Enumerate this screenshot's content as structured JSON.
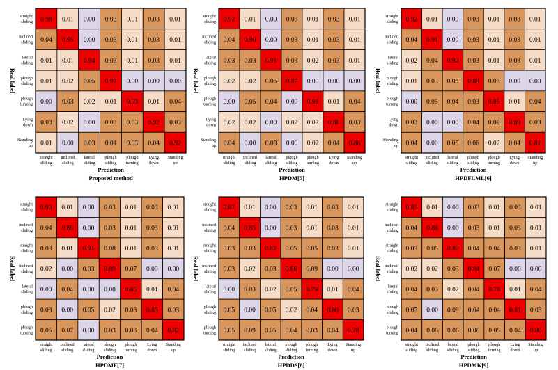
{
  "figure": {
    "description_title": ""
  },
  "colors": {
    "strong": "#ee0000",
    "medium": "#d8955c",
    "light": "#f6dcc6",
    "low": "#dcd6e8"
  },
  "chart_data": [
    {
      "type": "heatmap",
      "title": "Proposed method",
      "xlabel": "Prediction",
      "ylabel": "Real label",
      "rows": [
        [
          "straight",
          "sliding"
        ],
        [
          "inclined",
          "sliding"
        ],
        [
          "lateral",
          "sliding"
        ],
        [
          "plough",
          "sliding"
        ],
        [
          "plough",
          "turning"
        ],
        [
          "Lying",
          "down"
        ],
        [
          "Standing",
          "up"
        ]
      ],
      "cols": [
        [
          "straight",
          "sliding"
        ],
        [
          "inclined",
          "sliding"
        ],
        [
          "lateral",
          "sliding"
        ],
        [
          "plough",
          "sliding"
        ],
        [
          "plough",
          "turning"
        ],
        [
          "Lying",
          "down"
        ],
        [
          "Standing",
          "up"
        ]
      ],
      "values": [
        [
          0.98,
          0.01,
          0.0,
          0.03,
          0.01,
          0.03,
          0.01
        ],
        [
          0.04,
          0.95,
          0.0,
          0.03,
          0.01,
          0.03,
          0.01
        ],
        [
          0.01,
          0.01,
          0.94,
          0.03,
          0.01,
          0.03,
          0.01
        ],
        [
          0.01,
          0.02,
          0.05,
          0.93,
          0.0,
          0.0,
          0.0
        ],
        [
          0.0,
          0.03,
          0.02,
          0.01,
          0.93,
          0.01,
          0.04
        ],
        [
          0.03,
          0.02,
          0.0,
          0.03,
          0.03,
          0.92,
          0.03
        ],
        [
          0.01,
          0.0,
          0.03,
          0.04,
          0.03,
          0.04,
          0.92
        ]
      ]
    },
    {
      "type": "heatmap",
      "title": "HPDM[5]",
      "xlabel": "Prediction",
      "ylabel": "Real label",
      "rows": [
        [
          "straight",
          "sliding"
        ],
        [
          "inclined",
          "sliding"
        ],
        [
          "lateral",
          "sliding"
        ],
        [
          "plough",
          "sliding"
        ],
        [
          "plough",
          "turning"
        ],
        [
          "Lying",
          "down"
        ],
        [
          "Standing",
          "up"
        ]
      ],
      "cols": [
        [
          "straight",
          "sliding"
        ],
        [
          "inclined",
          "sliding"
        ],
        [
          "lateral",
          "sliding"
        ],
        [
          "plough",
          "sliding"
        ],
        [
          "plough",
          "turning"
        ],
        [
          "Lying",
          "down"
        ],
        [
          "Standing",
          "up"
        ]
      ],
      "values": [
        [
          0.92,
          0.01,
          0.0,
          0.03,
          0.01,
          0.03,
          0.01
        ],
        [
          0.04,
          0.9,
          0.0,
          0.03,
          0.01,
          0.03,
          0.01
        ],
        [
          0.03,
          0.03,
          0.91,
          0.03,
          0.02,
          0.03,
          0.01
        ],
        [
          0.02,
          0.02,
          0.05,
          0.87,
          0.0,
          0.0,
          0.0
        ],
        [
          0.0,
          0.05,
          0.04,
          0.0,
          0.91,
          0.01,
          0.04
        ],
        [
          0.02,
          0.02,
          0.0,
          0.02,
          0.02,
          0.88,
          0.03
        ],
        [
          0.04,
          0.0,
          0.08,
          0.0,
          0.02,
          0.04,
          0.88
        ]
      ]
    },
    {
      "type": "heatmap",
      "title": "HPDFLML[6]",
      "xlabel": "Prediction",
      "ylabel": "Real label",
      "rows": [
        [
          "straight",
          "sliding"
        ],
        [
          "inclined",
          "sliding"
        ],
        [
          "lateral",
          "sliding"
        ],
        [
          "plough",
          "sliding"
        ],
        [
          "plough",
          "turning"
        ],
        [
          "Lying",
          "down"
        ],
        [
          "Standing",
          "up"
        ]
      ],
      "cols": [
        [
          "straight",
          "sliding"
        ],
        [
          "inclined",
          "sliding"
        ],
        [
          "lateral",
          "sliding"
        ],
        [
          "plough",
          "sliding"
        ],
        [
          "plough",
          "turning"
        ],
        [
          "Lying",
          "down"
        ],
        [
          "Standing",
          "up"
        ]
      ],
      "values": [
        [
          0.92,
          0.01,
          0.0,
          0.03,
          0.01,
          0.03,
          0.01
        ],
        [
          0.04,
          0.91,
          0.0,
          0.03,
          0.01,
          0.03,
          0.01
        ],
        [
          0.02,
          0.04,
          0.9,
          0.03,
          0.01,
          0.03,
          0.01
        ],
        [
          0.01,
          0.03,
          0.05,
          0.88,
          0.03,
          0.0,
          0.0
        ],
        [
          0.0,
          0.05,
          0.04,
          0.03,
          0.85,
          0.01,
          0.04
        ],
        [
          0.03,
          0.0,
          0.0,
          0.04,
          0.09,
          0.8,
          0.03
        ],
        [
          0.04,
          0.0,
          0.05,
          0.06,
          0.02,
          0.04,
          0.81
        ]
      ]
    },
    {
      "type": "heatmap",
      "title": "HPDMF[7]",
      "xlabel": "Prediction",
      "ylabel": "Real label",
      "rows": [
        [
          "straight",
          "sliding"
        ],
        [
          "inclined",
          "sliding"
        ],
        [
          "straight",
          "sliding"
        ],
        [
          "inclined",
          "sliding"
        ],
        [
          "lateral",
          "sliding"
        ],
        [
          "plough",
          "sliding"
        ],
        [
          "plough",
          "turning"
        ]
      ],
      "cols": [
        [
          "straight",
          "sliding"
        ],
        [
          "inclined",
          "sliding"
        ],
        [
          "lateral",
          "sliding"
        ],
        [
          "plough",
          "sliding"
        ],
        [
          "plough",
          "turning"
        ],
        [
          "Lying",
          "down"
        ],
        [
          "Standing",
          "up"
        ]
      ],
      "values": [
        [
          0.9,
          0.01,
          0.0,
          0.03,
          0.01,
          0.03,
          0.01
        ],
        [
          0.04,
          0.88,
          0.0,
          0.03,
          0.01,
          0.03,
          0.01
        ],
        [
          0.03,
          0.01,
          0.91,
          0.08,
          0.01,
          0.03,
          0.01
        ],
        [
          0.02,
          0.0,
          0.03,
          0.89,
          0.07,
          0.0,
          0.0
        ],
        [
          0.0,
          0.04,
          0.0,
          0.0,
          0.85,
          0.01,
          0.04
        ],
        [
          0.03,
          0.0,
          0.05,
          0.02,
          0.03,
          0.85,
          0.03
        ],
        [
          0.05,
          0.07,
          0.0,
          0.03,
          0.03,
          0.04,
          0.82
        ]
      ]
    },
    {
      "type": "heatmap",
      "title": "HPDDS[8]",
      "xlabel": "Prediction",
      "ylabel": "Real label",
      "rows": [
        [
          "straight",
          "sliding"
        ],
        [
          "inclined",
          "sliding"
        ],
        [
          "straight",
          "sliding"
        ],
        [
          "inclined",
          "sliding"
        ],
        [
          "lateral",
          "sliding"
        ],
        [
          "plough",
          "sliding"
        ],
        [
          "plough",
          "turning"
        ]
      ],
      "cols": [
        [
          "straight",
          "sliding"
        ],
        [
          "inclined",
          "sliding"
        ],
        [
          "lateral",
          "sliding"
        ],
        [
          "plough",
          "sliding"
        ],
        [
          "plough",
          "turning"
        ],
        [
          "Lying",
          "down"
        ],
        [
          "Standing",
          "up"
        ]
      ],
      "values": [
        [
          0.87,
          0.01,
          0.0,
          0.03,
          0.01,
          0.03,
          0.01
        ],
        [
          0.04,
          0.85,
          0.0,
          0.03,
          0.01,
          0.03,
          0.01
        ],
        [
          0.03,
          0.03,
          0.82,
          0.05,
          0.05,
          0.03,
          0.01
        ],
        [
          0.03,
          0.02,
          0.03,
          0.86,
          0.09,
          0.0,
          0.0
        ],
        [
          0.0,
          0.03,
          0.02,
          0.05,
          0.79,
          0.01,
          0.04
        ],
        [
          0.05,
          0.0,
          0.05,
          0.02,
          0.04,
          0.8,
          0.03
        ],
        [
          0.05,
          0.09,
          0.05,
          0.04,
          0.03,
          0.04,
          0.78
        ]
      ]
    },
    {
      "type": "heatmap",
      "title": "HPDMK[9]",
      "xlabel": "Prediction",
      "ylabel": "Real label",
      "rows": [
        [
          "straight",
          "sliding"
        ],
        [
          "inclined",
          "sliding"
        ],
        [
          "straight",
          "sliding"
        ],
        [
          "inclined",
          "sliding"
        ],
        [
          "lateral",
          "sliding"
        ],
        [
          "plough",
          "sliding"
        ],
        [
          "plough",
          "turning"
        ]
      ],
      "cols": [
        [
          "straight",
          "sliding"
        ],
        [
          "inclined",
          "sliding"
        ],
        [
          "lateral",
          "sliding"
        ],
        [
          "plough",
          "sliding"
        ],
        [
          "plough",
          "turning"
        ],
        [
          "Lying",
          "down"
        ],
        [
          "Standing",
          "up"
        ]
      ],
      "values": [
        [
          0.85,
          0.01,
          0.0,
          0.03,
          0.01,
          0.03,
          0.01
        ],
        [
          0.04,
          0.86,
          0.0,
          0.03,
          0.01,
          0.03,
          0.01
        ],
        [
          0.03,
          0.05,
          0.8,
          0.04,
          0.04,
          0.03,
          0.01
        ],
        [
          0.02,
          0.02,
          0.03,
          0.84,
          0.07,
          0.0,
          0.0
        ],
        [
          0.04,
          0.03,
          0.02,
          0.04,
          0.78,
          0.01,
          0.04
        ],
        [
          0.05,
          0.0,
          0.09,
          0.04,
          0.04,
          0.81,
          0.03
        ],
        [
          0.04,
          0.06,
          0.06,
          0.06,
          0.05,
          0.04,
          0.8
        ]
      ]
    }
  ]
}
